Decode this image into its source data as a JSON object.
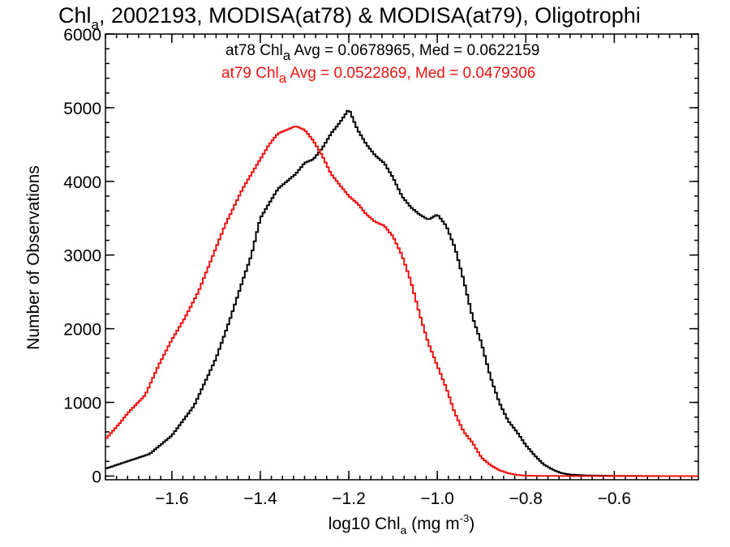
{
  "chart_data": {
    "type": "line",
    "title_parts": {
      "pre": "Chl",
      "sub": "a",
      "post": ", 2002193, MODISA(at78) & MODISA(at79), Oligotrophi"
    },
    "xlabel_parts": {
      "pre": "log10 Chl",
      "sub": "a",
      "mid": " (mg m",
      "sup": "-3",
      "post": ")"
    },
    "ylabel": "Number of Observations",
    "xlim": [
      -1.75,
      -0.41
    ],
    "ylim": [
      -50,
      6000
    ],
    "xticks": [
      -1.6,
      -1.4,
      -1.2,
      -1.0,
      -0.8,
      -0.6
    ],
    "xtick_labels": [
      "−1.6",
      "−1.4",
      "−1.2",
      "−1.0",
      "−0.8",
      "−0.6"
    ],
    "yticks": [
      0,
      1000,
      2000,
      3000,
      4000,
      5000,
      6000
    ],
    "ytick_labels": [
      "0",
      "1000",
      "2000",
      "3000",
      "4000",
      "5000",
      "6000"
    ],
    "grid": false,
    "legend_placement": "top",
    "annotations": [
      {
        "pre": "at78 Chl",
        "sub": "a",
        "post": " Avg = 0.0678965, Med = 0.0622159",
        "color": "#000000"
      },
      {
        "pre": "at79 Chl",
        "sub": "a",
        "post": " Avg = 0.0522869, Med = 0.0479306",
        "color": "#ee1111"
      }
    ],
    "series": [
      {
        "color": "#000000",
        "points": [
          [
            -1.75,
            100
          ],
          [
            -1.7,
            200
          ],
          [
            -1.65,
            300
          ],
          [
            -1.6,
            550
          ],
          [
            -1.55,
            950
          ],
          [
            -1.5,
            1600
          ],
          [
            -1.47,
            2100
          ],
          [
            -1.44,
            2650
          ],
          [
            -1.42,
            3000
          ],
          [
            -1.4,
            3500
          ],
          [
            -1.38,
            3700
          ],
          [
            -1.36,
            3900
          ],
          [
            -1.34,
            4000
          ],
          [
            -1.32,
            4100
          ],
          [
            -1.3,
            4250
          ],
          [
            -1.28,
            4300
          ],
          [
            -1.26,
            4450
          ],
          [
            -1.24,
            4650
          ],
          [
            -1.22,
            4800
          ],
          [
            -1.2,
            4980
          ],
          [
            -1.18,
            4700
          ],
          [
            -1.16,
            4500
          ],
          [
            -1.14,
            4350
          ],
          [
            -1.12,
            4250
          ],
          [
            -1.1,
            4050
          ],
          [
            -1.08,
            3800
          ],
          [
            -1.06,
            3650
          ],
          [
            -1.04,
            3550
          ],
          [
            -1.02,
            3480
          ],
          [
            -1.0,
            3550
          ],
          [
            -0.98,
            3400
          ],
          [
            -0.96,
            3100
          ],
          [
            -0.94,
            2650
          ],
          [
            -0.92,
            2150
          ],
          [
            -0.9,
            1800
          ],
          [
            -0.88,
            1350
          ],
          [
            -0.86,
            1000
          ],
          [
            -0.84,
            750
          ],
          [
            -0.82,
            600
          ],
          [
            -0.8,
            420
          ],
          [
            -0.78,
            280
          ],
          [
            -0.76,
            160
          ],
          [
            -0.74,
            90
          ],
          [
            -0.72,
            40
          ],
          [
            -0.7,
            20
          ],
          [
            -0.66,
            8
          ],
          [
            -0.6,
            3
          ],
          [
            -0.5,
            0
          ],
          [
            -0.41,
            0
          ]
        ]
      },
      {
        "color": "#ee1111",
        "points": [
          [
            -1.75,
            500
          ],
          [
            -1.72,
            700
          ],
          [
            -1.7,
            850
          ],
          [
            -1.66,
            1100
          ],
          [
            -1.63,
            1500
          ],
          [
            -1.6,
            1850
          ],
          [
            -1.57,
            2150
          ],
          [
            -1.54,
            2500
          ],
          [
            -1.52,
            2800
          ],
          [
            -1.5,
            3100
          ],
          [
            -1.48,
            3400
          ],
          [
            -1.46,
            3650
          ],
          [
            -1.44,
            3900
          ],
          [
            -1.42,
            4100
          ],
          [
            -1.4,
            4300
          ],
          [
            -1.38,
            4500
          ],
          [
            -1.36,
            4650
          ],
          [
            -1.34,
            4700
          ],
          [
            -1.32,
            4750
          ],
          [
            -1.3,
            4700
          ],
          [
            -1.28,
            4550
          ],
          [
            -1.26,
            4350
          ],
          [
            -1.24,
            4100
          ],
          [
            -1.22,
            3950
          ],
          [
            -1.2,
            3800
          ],
          [
            -1.18,
            3700
          ],
          [
            -1.16,
            3550
          ],
          [
            -1.14,
            3450
          ],
          [
            -1.12,
            3400
          ],
          [
            -1.1,
            3250
          ],
          [
            -1.08,
            3000
          ],
          [
            -1.06,
            2650
          ],
          [
            -1.04,
            2200
          ],
          [
            -1.02,
            1800
          ],
          [
            -1.0,
            1500
          ],
          [
            -0.98,
            1200
          ],
          [
            -0.96,
            850
          ],
          [
            -0.94,
            600
          ],
          [
            -0.92,
            450
          ],
          [
            -0.9,
            250
          ],
          [
            -0.88,
            150
          ],
          [
            -0.86,
            80
          ],
          [
            -0.84,
            40
          ],
          [
            -0.82,
            15
          ],
          [
            -0.8,
            5
          ],
          [
            -0.75,
            2
          ],
          [
            -0.7,
            0
          ],
          [
            -0.41,
            0
          ]
        ]
      }
    ]
  }
}
